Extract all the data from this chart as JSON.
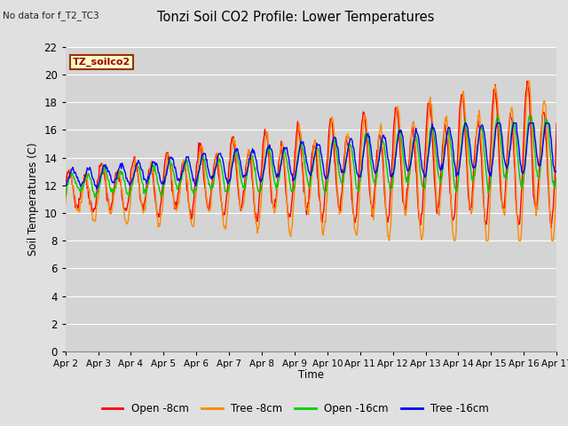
{
  "title": "Tonzi Soil CO2 Profile: Lower Temperatures",
  "subtitle": "No data for f_T2_TC3",
  "ylabel": "Soil Temperatures (C)",
  "xlabel": "Time",
  "box_label": "TZ_soilco2",
  "ylim": [
    0,
    22
  ],
  "yticks": [
    0,
    2,
    4,
    6,
    8,
    10,
    12,
    14,
    16,
    18,
    20,
    22
  ],
  "xtick_labels": [
    "Apr 2",
    "Apr 3",
    "Apr 4",
    "Apr 5",
    "Apr 6",
    "Apr 7",
    "Apr 8",
    "Apr 9",
    "Apr 10",
    "Apr 11",
    "Apr 12",
    "Apr 13",
    "Apr 14",
    "Apr 15",
    "Apr 16",
    "Apr 17"
  ],
  "series_colors": [
    "#ff0000",
    "#ff8800",
    "#00cc00",
    "#0000ff"
  ],
  "series_labels": [
    "Open -8cm",
    "Tree -8cm",
    "Open -16cm",
    "Tree -16cm"
  ],
  "bg_color": "#e0e0e0",
  "plot_bg_color": "#d4d4d4",
  "grid_color": "#ffffff",
  "n_points": 720
}
